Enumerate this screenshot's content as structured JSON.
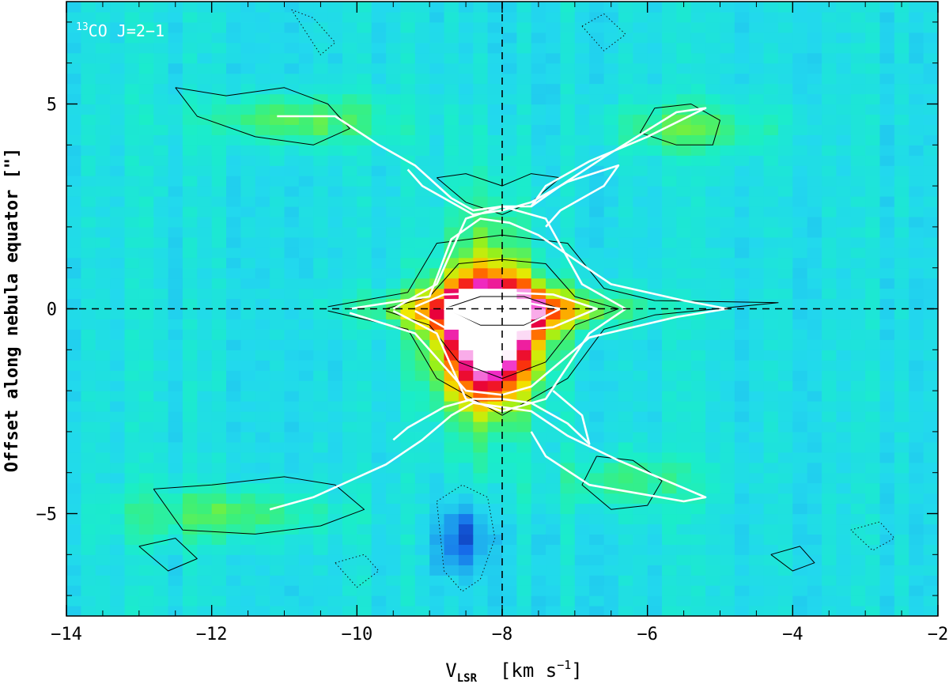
{
  "chart_data": {
    "type": "heatmap",
    "annotation": {
      "superscript": "13",
      "text": "CO J=2−1"
    },
    "xlabel": {
      "main": "V",
      "sub": "LSR",
      "units": "[km s",
      "units_exp": "−1",
      "units_close": "]"
    },
    "ylabel": "Offset along nebula equator [\"]",
    "xlim": [
      -14,
      -2
    ],
    "ylim": [
      -7.5,
      7.5
    ],
    "x_ticks": [
      -14,
      -12,
      -10,
      -8,
      -6,
      -4,
      -2
    ],
    "x_tick_labels": [
      "−14",
      "−12",
      "−10",
      "−8",
      "−6",
      "−4",
      "−2"
    ],
    "y_ticks": [
      -5,
      0,
      5
    ],
    "y_tick_labels": [
      "−5",
      "0",
      "5"
    ],
    "reference_lines": {
      "x": -8,
      "y": 0
    },
    "colormap": [
      "#0a1a8c",
      "#1565e8",
      "#1ea9ee",
      "#22d8ee",
      "#1aeec8",
      "#3cf078",
      "#9af018",
      "#f0e800",
      "#ffa000",
      "#ff4000",
      "#e8003c",
      "#f02cc8",
      "#ffffff"
    ],
    "emission_components": [
      {
        "name": "core",
        "x0": -8.15,
        "y0": -0.3,
        "sx": 0.5,
        "sy": 0.75,
        "amp": 1.0
      },
      {
        "name": "core-south",
        "x0": -8.2,
        "y0": -1.6,
        "sx": 0.45,
        "sy": 0.7,
        "amp": 0.45
      },
      {
        "name": "equatorial-disk",
        "x0": -8.0,
        "y0": 0.0,
        "sx": 1.15,
        "sy": 0.32,
        "amp": 0.55
      },
      {
        "name": "column",
        "x0": -8.2,
        "y0": -0.2,
        "sx": 0.45,
        "sy": 2.2,
        "amp": 0.35
      },
      {
        "name": "nw-arm",
        "x0": -10.8,
        "y0": 4.6,
        "sx": 0.9,
        "sy": 0.45,
        "amp": 0.25
      },
      {
        "name": "ne-arm",
        "x0": -5.4,
        "y0": 4.4,
        "sx": 0.8,
        "sy": 0.45,
        "amp": 0.22
      },
      {
        "name": "sw-arm",
        "x0": -11.8,
        "y0": -5.0,
        "sx": 1.0,
        "sy": 0.45,
        "amp": 0.23
      },
      {
        "name": "se-arm",
        "x0": -6.3,
        "y0": -4.2,
        "sx": 0.7,
        "sy": 0.5,
        "amp": 0.18
      },
      {
        "name": "absorption-dip",
        "x0": -8.55,
        "y0": -5.6,
        "sx": 0.25,
        "sy": 0.6,
        "amp": -0.28
      }
    ],
    "white_contours": [
      {
        "x": [
          -10.1,
          -9.0,
          -8.7,
          -8.3,
          -7.9,
          -7.5,
          -6.5,
          -5.5,
          -4.9,
          -5.6,
          -6.8,
          -7.6,
          -8.0,
          -8.5,
          -9.2,
          -10.1
        ],
        "y": [
          0.0,
          0.3,
          1.7,
          2.2,
          2.1,
          1.8,
          0.6,
          0.2,
          0.0,
          -0.2,
          -0.7,
          -1.9,
          -2.1,
          -2.0,
          -0.6,
          -0.1
        ]
      },
      {
        "x": [
          -9.5,
          -8.9,
          -8.5,
          -8.0,
          -7.4,
          -6.9,
          -6.3,
          -6.8,
          -7.4,
          -8.0,
          -8.5,
          -8.9,
          -9.5
        ],
        "y": [
          0.0,
          0.6,
          2.2,
          2.5,
          2.2,
          0.6,
          0.0,
          -0.6,
          -2.2,
          -2.5,
          -2.2,
          -0.6,
          -0.05
        ]
      },
      {
        "x": [
          -9.2,
          -8.8,
          -8.0,
          -7.3,
          -6.7,
          -7.3,
          -8.0,
          -8.8,
          -9.2
        ],
        "y": [
          0.05,
          0.35,
          0.4,
          0.35,
          0.0,
          -0.45,
          -0.55,
          -0.45,
          -0.05
        ]
      },
      {
        "x": [
          -8.8,
          -8.0,
          -7.2,
          -8.0,
          -8.8
        ],
        "y": [
          0.0,
          0.25,
          0.0,
          -0.7,
          0.0
        ]
      },
      {
        "x": [
          -11.1,
          -10.3,
          -9.7,
          -9.2,
          -8.7,
          -8.4,
          -8.0,
          -7.6,
          -7.2,
          -6.6,
          -5.6,
          -5.2,
          -6.0,
          -6.8,
          -7.4,
          -7.6
        ],
        "y": [
          4.7,
          4.7,
          4.0,
          3.5,
          2.7,
          2.4,
          2.5,
          2.5,
          3.0,
          3.7,
          4.8,
          4.9,
          4.2,
          3.6,
          3.0,
          2.5
        ]
      },
      {
        "x": [
          -11.2,
          -10.6,
          -9.6,
          -9.1,
          -8.7,
          -8.4,
          -8.0,
          -7.6,
          -7.1,
          -6.4,
          -5.2,
          -5.5,
          -6.8,
          -7.4,
          -7.6
        ],
        "y": [
          -4.9,
          -4.6,
          -3.8,
          -3.2,
          -2.6,
          -2.3,
          -2.4,
          -2.5,
          -3.1,
          -3.7,
          -4.6,
          -4.7,
          -4.3,
          -3.6,
          -3.0
        ]
      },
      {
        "x": [
          -9.3,
          -9.1,
          -8.6,
          -8.4,
          -8.0,
          -7.6,
          -7.1,
          -6.4,
          -6.6,
          -7.2,
          -7.4
        ],
        "y": [
          3.4,
          3.0,
          2.5,
          2.3,
          2.4,
          2.6,
          3.1,
          3.5,
          3.0,
          2.4,
          2.0
        ]
      },
      {
        "x": [
          -9.5,
          -9.3,
          -8.8,
          -8.4,
          -8.0,
          -7.6,
          -7.1,
          -6.8,
          -6.9,
          -7.3
        ],
        "y": [
          -3.2,
          -2.9,
          -2.4,
          -2.2,
          -2.2,
          -2.3,
          -2.8,
          -3.3,
          -2.6,
          -2.0
        ]
      }
    ],
    "black_contours": [
      {
        "x": [
          -12.5,
          -11.8,
          -11.0,
          -10.4,
          -10.1,
          -10.6,
          -11.4,
          -12.2,
          -12.5
        ],
        "y": [
          5.4,
          5.2,
          5.4,
          5.0,
          4.4,
          4.0,
          4.2,
          4.7,
          5.4
        ]
      },
      {
        "x": [
          -5.9,
          -5.4,
          -5.0,
          -5.1,
          -5.6,
          -6.1,
          -5.9
        ],
        "y": [
          4.9,
          5.0,
          4.6,
          4.0,
          4.0,
          4.3,
          4.9
        ]
      },
      {
        "x": [
          -12.8,
          -12.0,
          -11.0,
          -10.3,
          -9.9,
          -10.5,
          -11.4,
          -12.4,
          -12.8
        ],
        "y": [
          -4.4,
          -4.3,
          -4.1,
          -4.3,
          -4.9,
          -5.3,
          -5.5,
          -5.4,
          -4.4
        ]
      },
      {
        "x": [
          -6.7,
          -6.2,
          -5.8,
          -6.0,
          -6.5,
          -6.9,
          -6.7
        ],
        "y": [
          -3.6,
          -3.7,
          -4.2,
          -4.8,
          -4.9,
          -4.3,
          -3.6
        ]
      },
      {
        "x": [
          -10.4,
          -9.3,
          -8.9,
          -8.0,
          -7.1,
          -6.6,
          -5.9,
          -4.2,
          -5.9,
          -6.6,
          -7.1,
          -8.0,
          -8.9,
          -9.3,
          -10.4
        ],
        "y": [
          0.05,
          0.4,
          1.6,
          1.8,
          1.6,
          0.5,
          0.2,
          0.15,
          -0.15,
          -0.5,
          -1.7,
          -2.6,
          -1.7,
          -0.5,
          -0.05
        ]
      },
      {
        "x": [
          -9.6,
          -9.0,
          -8.6,
          -8.0,
          -7.4,
          -7.0,
          -6.4,
          -7.0,
          -7.4,
          -8.0,
          -8.6,
          -9.0,
          -9.6
        ],
        "y": [
          0.0,
          0.3,
          1.1,
          1.2,
          1.1,
          0.3,
          0.0,
          -0.4,
          -1.3,
          -1.7,
          -1.3,
          -0.4,
          -0.05
        ]
      },
      {
        "x": [
          -8.8,
          -8.3,
          -7.7,
          -7.2,
          -7.7,
          -8.3,
          -8.8
        ],
        "y": [
          0.0,
          0.3,
          0.3,
          0.0,
          -0.4,
          -0.4,
          0.0
        ]
      },
      {
        "x": [
          -13.0,
          -12.5,
          -12.2,
          -12.6,
          -13.0
        ],
        "y": [
          -5.8,
          -5.6,
          -6.1,
          -6.4,
          -5.8
        ]
      },
      {
        "x": [
          -4.3,
          -3.9,
          -3.7,
          -4.0,
          -4.3
        ],
        "y": [
          -6.0,
          -5.8,
          -6.2,
          -6.4,
          -6.0
        ]
      },
      {
        "x": [
          -8.9,
          -8.5,
          -8.0,
          -7.6,
          -7.2,
          -7.6,
          -8.0,
          -8.5,
          -8.9
        ],
        "y": [
          3.2,
          3.3,
          3.0,
          3.3,
          3.2,
          2.6,
          2.3,
          2.6,
          3.2
        ]
      }
    ],
    "dotted_contours": [
      {
        "x": [
          -8.9,
          -8.55,
          -8.2,
          -8.1,
          -8.3,
          -8.55,
          -8.8,
          -8.9
        ],
        "y": [
          -4.7,
          -4.3,
          -4.6,
          -5.6,
          -6.6,
          -6.9,
          -6.4,
          -4.7
        ]
      },
      {
        "x": [
          -10.9,
          -10.6,
          -10.3,
          -10.5,
          -10.9
        ],
        "y": [
          7.3,
          7.1,
          6.5,
          6.2,
          7.3
        ]
      },
      {
        "x": [
          -6.9,
          -6.6,
          -6.3,
          -6.6,
          -6.9
        ],
        "y": [
          6.9,
          7.2,
          6.7,
          6.3,
          6.9
        ]
      },
      {
        "x": [
          -3.2,
          -2.8,
          -2.6,
          -2.9,
          -3.2
        ],
        "y": [
          -5.4,
          -5.2,
          -5.6,
          -5.9,
          -5.4
        ]
      },
      {
        "x": [
          -10.3,
          -9.9,
          -9.7,
          -10.0,
          -10.3
        ],
        "y": [
          -6.2,
          -6.0,
          -6.4,
          -6.8,
          -6.2
        ]
      }
    ]
  }
}
